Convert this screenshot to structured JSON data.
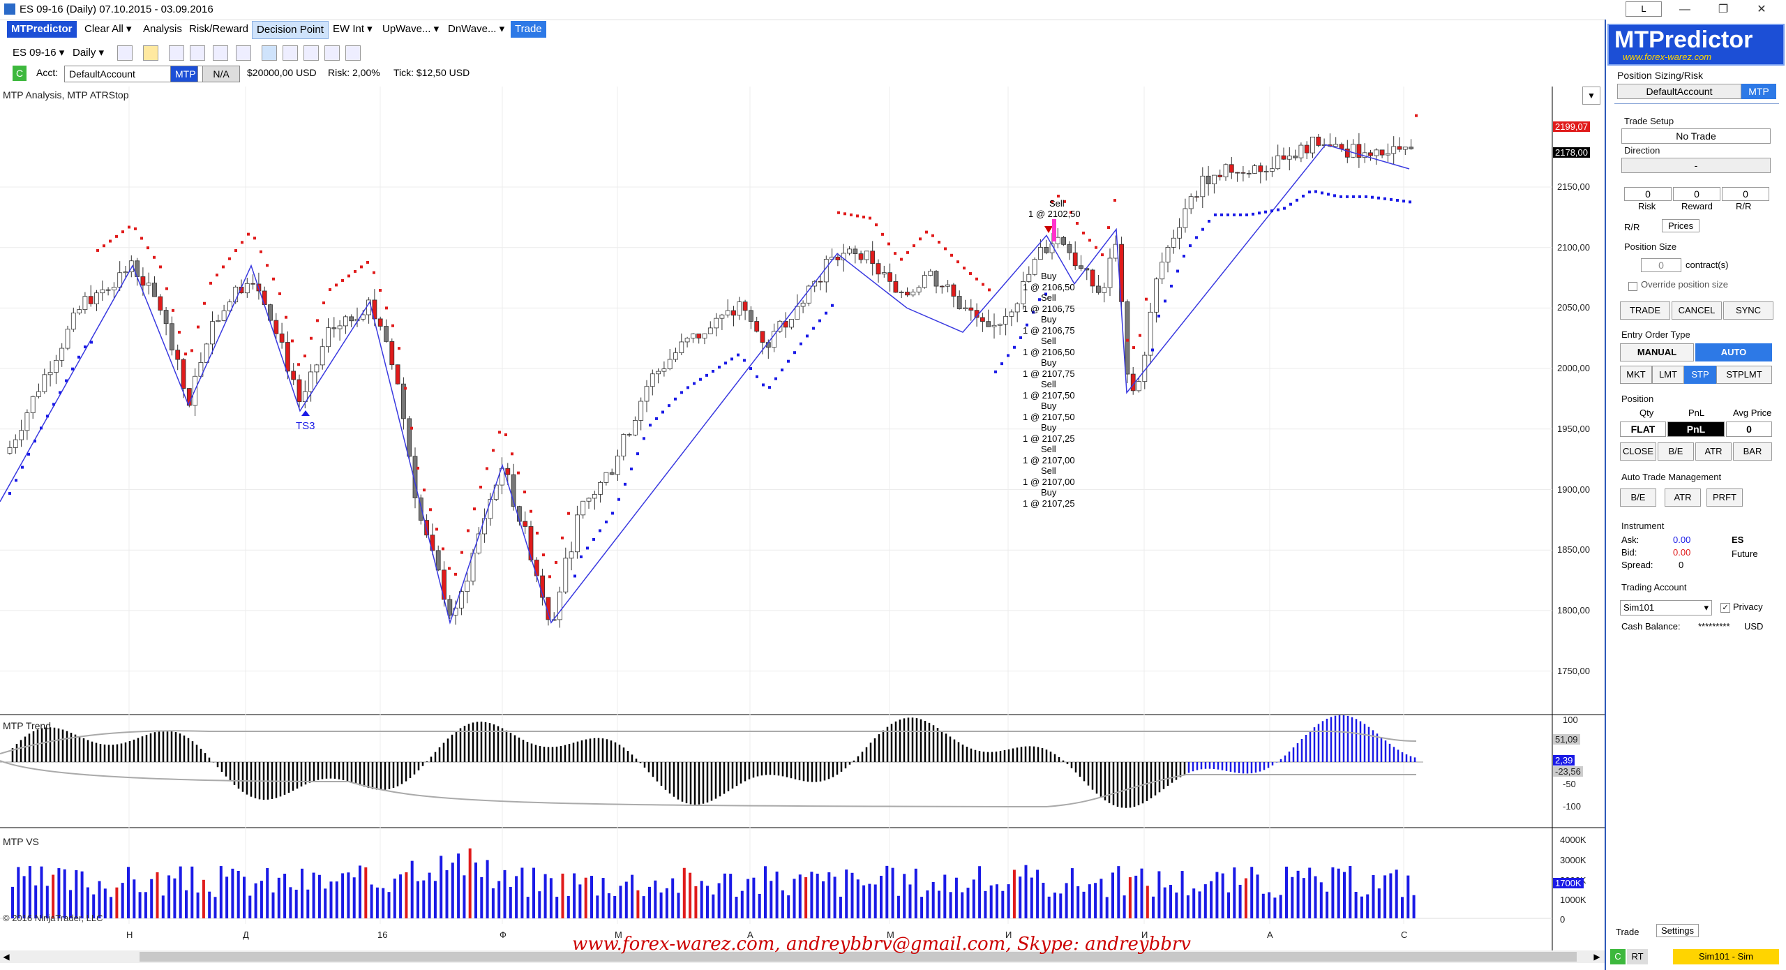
{
  "window": {
    "title": "ES 09-16 (Daily)  07.10.2015 - 03.09.2016",
    "tab_indicator": "L"
  },
  "menu": {
    "brand": "MTPredictor",
    "items": [
      "Clear All",
      "Analysis",
      "Risk/Reward",
      "Decision Point",
      "EW Int",
      "UpWave...",
      "DnWave...",
      "Trade"
    ]
  },
  "toolbar": {
    "instrument": "ES 09-16",
    "interval": "Daily"
  },
  "account_bar": {
    "c_label": "C",
    "acct_label": "Acct:",
    "account": "DefaultAccount",
    "mtp": "MTP",
    "na": "N/A",
    "balance": "$20000,00  USD",
    "risk": "Risk:  2,00%",
    "tick": "Tick:  $12,50  USD"
  },
  "chart": {
    "main_label": "MTP Analysis, MTP ATRStop",
    "trend_label": "MTP Trend",
    "vs_label": "MTP VS",
    "copyright": "© 2016 NinjaTrader, LLC",
    "price_axis": [
      "2150,00",
      "2100,00",
      "2050,00",
      "2000,00",
      "1950,00",
      "1900,00",
      "1850,00",
      "1800,00",
      "1750,00"
    ],
    "price_tag_red": "2199,07",
    "price_tag_black": "2178,00",
    "trend_axis": [
      "100",
      "50",
      "-50",
      "-100"
    ],
    "trend_tags": [
      "51,09",
      "2,39",
      "-23,56"
    ],
    "vs_axis": [
      "4000K",
      "3000K",
      "2000K",
      "1000K",
      "0"
    ],
    "vs_tag": "1700K",
    "x_axis": [
      "Н",
      "Д",
      "16",
      "Ф",
      "М",
      "А",
      "М",
      "И",
      "И",
      "А",
      "С"
    ],
    "ts3": "TS3",
    "sell_top": "Sell",
    "sell_top_price": "1 @ 2102,50",
    "trade_list": [
      "Buy",
      "1 @ 2106,50",
      "Sell",
      "1 @ 2106,75",
      "Buy",
      "1 @ 2106,75",
      "Sell",
      "1 @ 2106,50",
      "Buy",
      "1 @ 2107,75",
      "Sell",
      "1 @ 2107,50",
      "Buy",
      "1 @ 2107,50",
      "Buy",
      "1 @ 2107,25",
      "Sell",
      "1 @ 2107,00",
      "Sell",
      "1 @ 2107,00",
      "Buy",
      "1 @ 2107,25"
    ]
  },
  "side": {
    "logo": "MTPredictor",
    "logo_sub": "www.forex-warez.com",
    "ps_title": "Position Sizing/Risk",
    "ps_account": "DefaultAccount",
    "ps_mtp": "MTP",
    "trade_setup": "Trade Setup",
    "no_trade": "No Trade",
    "direction": "Direction",
    "direction_val": "-",
    "risk_val": "0",
    "reward_val": "0",
    "rr_val": "0",
    "risk_lbl": "Risk",
    "reward_lbl": "Reward",
    "rr_lbl": "R/R",
    "tab_rr": "R/R",
    "tab_prices": "Prices",
    "pos_size": "Position Size",
    "pos_qty": "0",
    "contracts": "contract(s)",
    "override": "Override position size",
    "btn_trade": "TRADE",
    "btn_cancel": "CANCEL",
    "btn_sync": "SYNC",
    "entry_type": "Entry Order Type",
    "manual": "MANUAL",
    "auto": "AUTO",
    "mkt": "MKT",
    "lmt": "LMT",
    "stp": "STP",
    "stplmt": "STPLMT",
    "position": "Position",
    "qty": "Qty",
    "pnl": "PnL",
    "avg": "Avg Price",
    "flat": "FLAT",
    "pnl_btn": "PnL",
    "avg_val": "0",
    "close": "CLOSE",
    "be": "B/E",
    "atr": "ATR",
    "bar": "BAR",
    "atm": "Auto Trade Management",
    "atm_be": "B/E",
    "atm_atr": "ATR",
    "atm_prft": "PRFT",
    "instrument": "Instrument",
    "ask_lbl": "Ask:",
    "ask": "0.00",
    "sym": "ES",
    "bid_lbl": "Bid:",
    "bid": "0.00",
    "type": "Future",
    "spread_lbl": "Spread:",
    "spread": "0",
    "trading_account": "Trading Account",
    "sim": "Sim101",
    "privacy": "Privacy",
    "cash_lbl": "Cash Balance:",
    "cash": "*********",
    "usd": "USD",
    "tab_trade": "Trade",
    "tab_settings": "Settings",
    "status_c": "C",
    "status_rt": "RT",
    "status_sim": "Sim101 - Sim"
  },
  "watermark": "www.forex-warez.com, andreybbrv@gmail.com, Skype: andreybbrv",
  "colors": {
    "accent": "#2d79e6",
    "brand": "#1c4fd6",
    "bear": "#e01b1b",
    "bull": "#ffffff",
    "atr_up": "#1a1ae6",
    "atr_down": "#e01b1b"
  }
}
